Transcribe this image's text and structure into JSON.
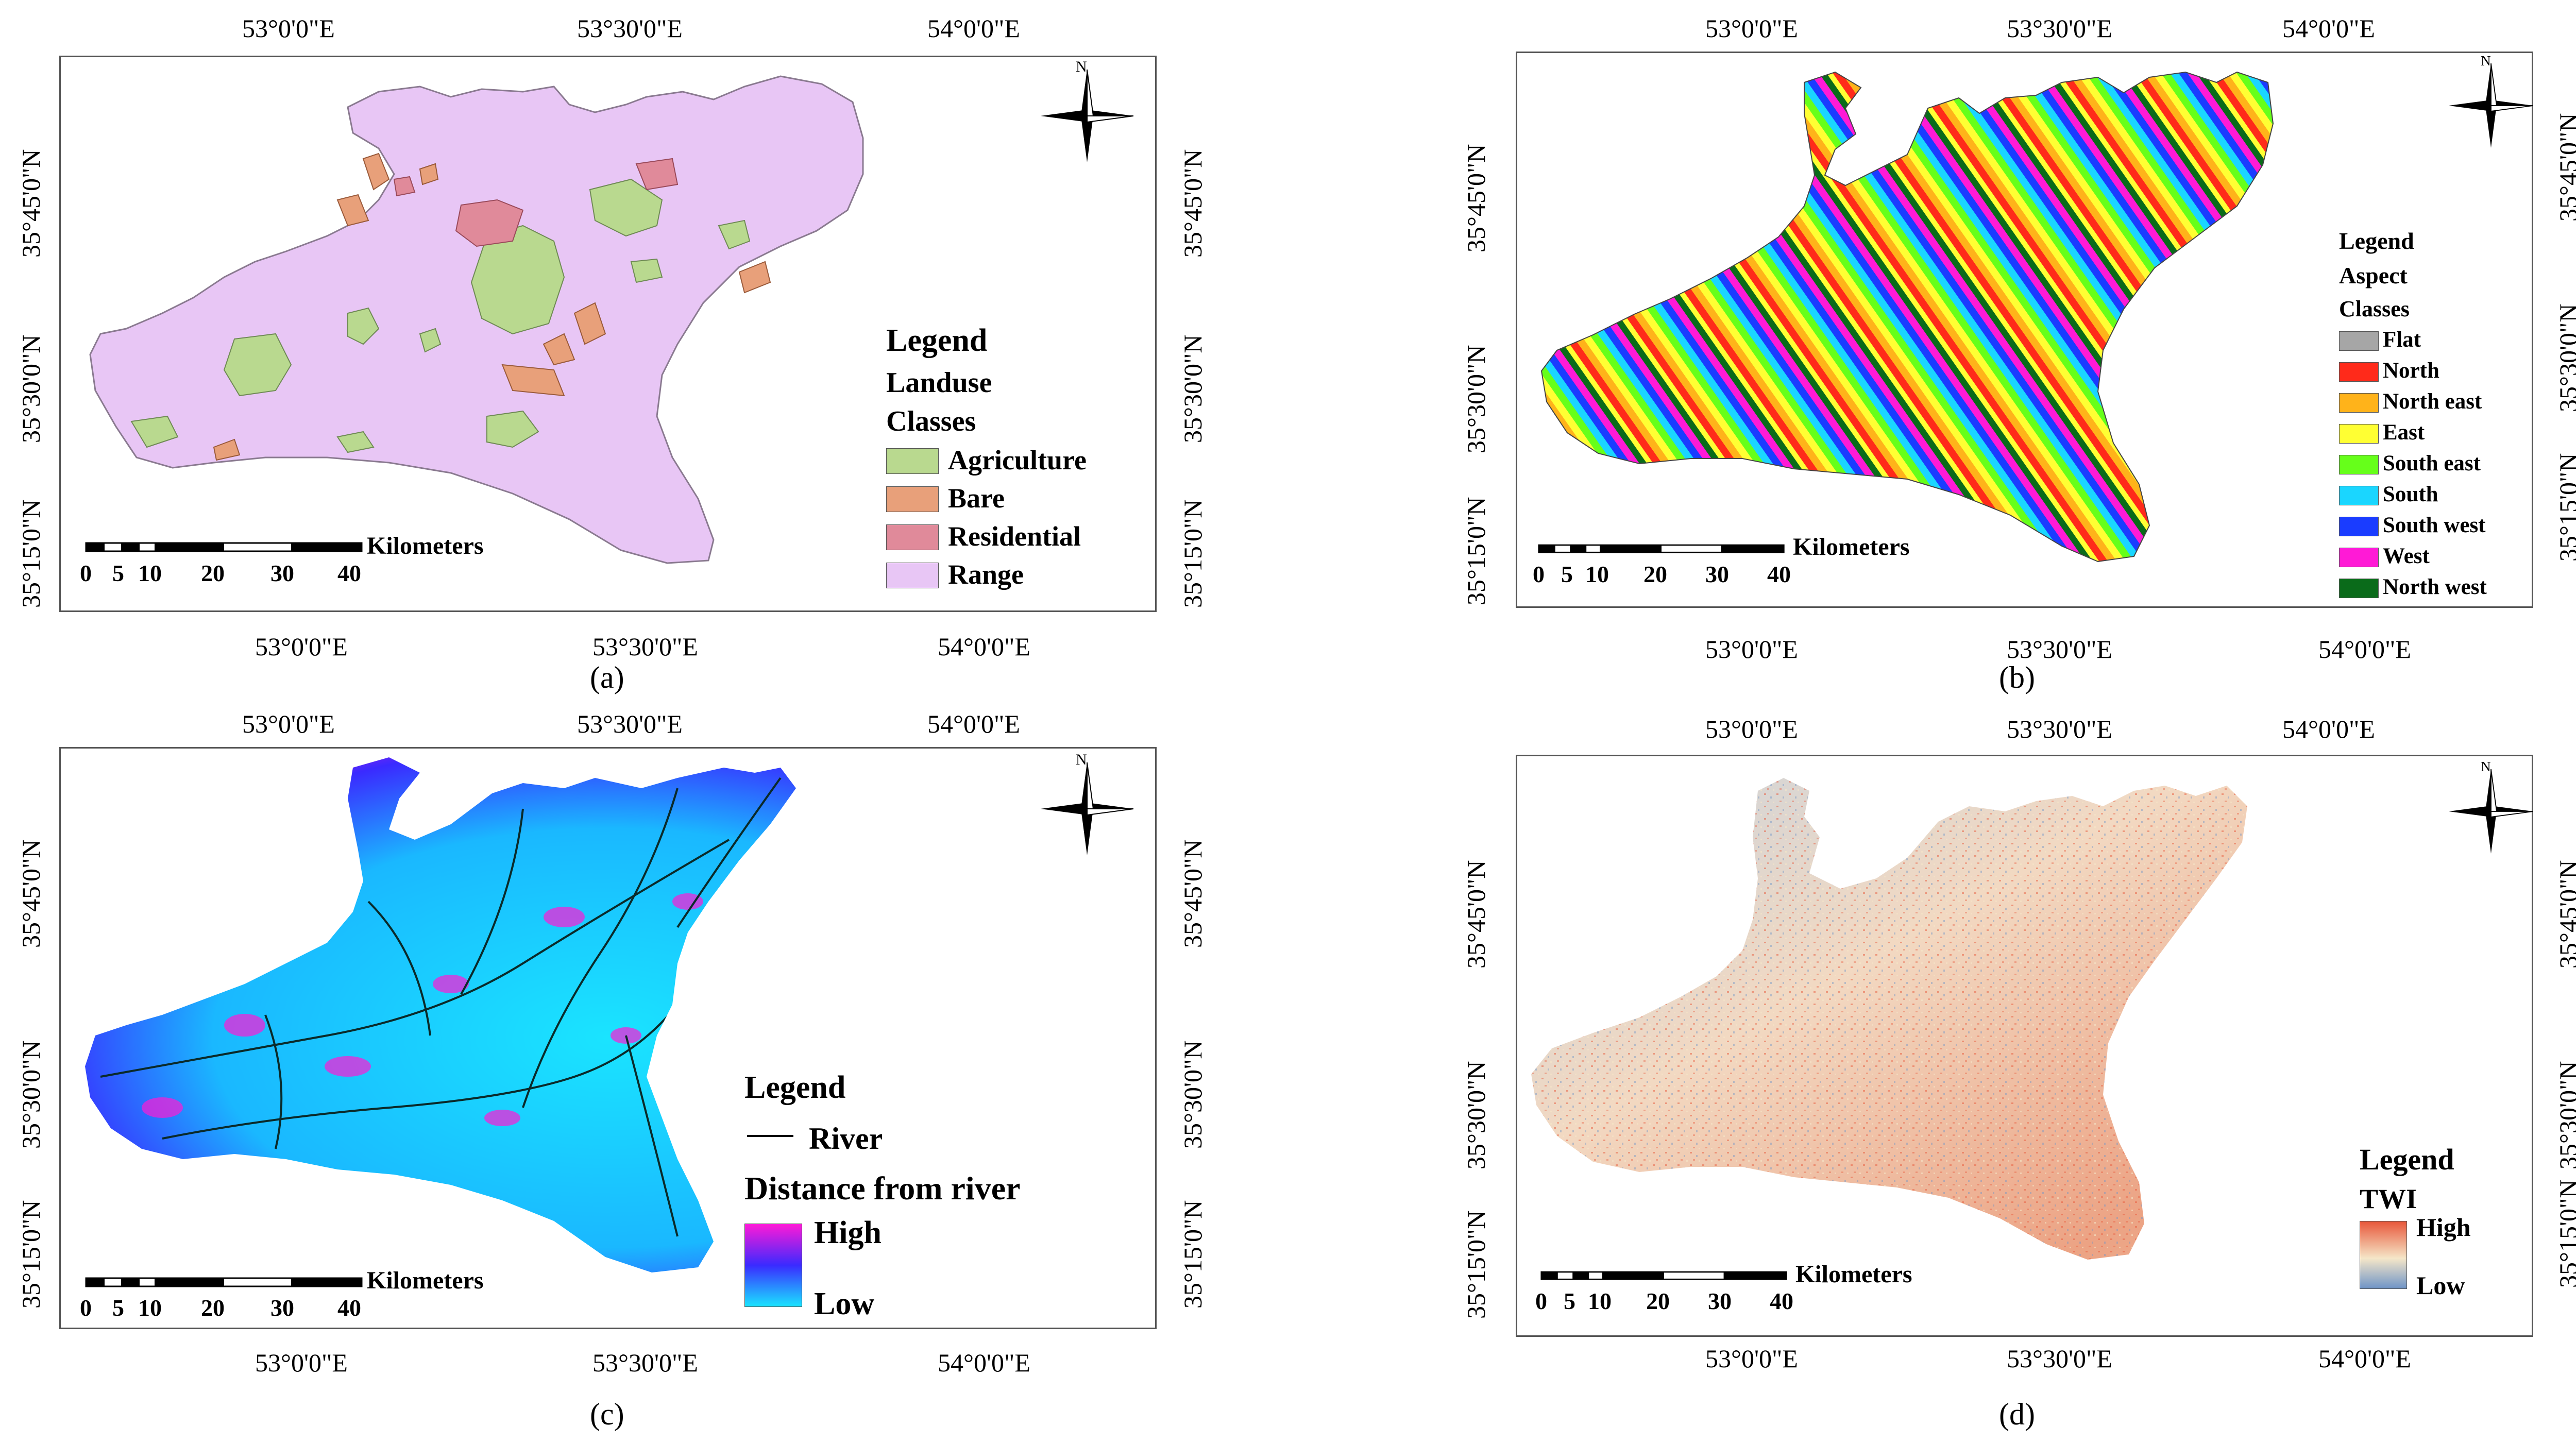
{
  "panels": {
    "a": {
      "caption": "(a)",
      "top_lons": [
        "53°0'0\"E",
        "53°30'0\"E",
        "54°0'0\"E"
      ],
      "bottom_lons": [
        "53°0'0\"E",
        "53°30'0\"E",
        "54°0'0\"E"
      ],
      "lats": [
        "35°45'0\"N",
        "35°30'0\"N",
        "35°15'0\"N"
      ],
      "legend": {
        "title": "Legend",
        "subtitle": "Landuse",
        "classes_label": "Classes",
        "items": [
          {
            "label": "Agriculture",
            "color": "#b9d98f"
          },
          {
            "label": "Bare",
            "color": "#e8a07a"
          },
          {
            "label": "Residential",
            "color": "#e08a9a"
          },
          {
            "label": "Range",
            "color": "#e8c6f5"
          }
        ]
      },
      "scale": {
        "unit": "Kilometers",
        "ticks": [
          "0",
          "5",
          "10",
          "20",
          "30",
          "40"
        ]
      },
      "north": "N"
    },
    "b": {
      "caption": "(b)",
      "top_lons": [
        "53°0'0\"E",
        "53°30'0\"E",
        "54°0'0\"E"
      ],
      "bottom_lons": [
        "53°0'0\"E",
        "53°30'0\"E",
        "54°0'0\"E"
      ],
      "lats": [
        "35°45'0\"N",
        "35°30'0\"N",
        "35°15'0\"N"
      ],
      "legend": {
        "title": "Legend",
        "subtitle": "Aspect",
        "classes_label": "Classes",
        "items": [
          {
            "label": "Flat",
            "color": "#a6a6a6"
          },
          {
            "label": "North",
            "color": "#ff2a1a"
          },
          {
            "label": "North east",
            "color": "#ffb31a"
          },
          {
            "label": "East",
            "color": "#ffff33"
          },
          {
            "label": "South east",
            "color": "#66ff1a"
          },
          {
            "label": "South",
            "color": "#1ad6ff"
          },
          {
            "label": "South west",
            "color": "#1a3cff"
          },
          {
            "label": "West",
            "color": "#ff1ad6"
          },
          {
            "label": "North west",
            "color": "#0a6b1a"
          }
        ]
      },
      "scale": {
        "unit": "Kilometers",
        "ticks": [
          "0",
          "5",
          "10",
          "20",
          "30",
          "40"
        ]
      },
      "north": "N"
    },
    "c": {
      "caption": "(c)",
      "top_lons": [
        "53°0'0\"E",
        "53°30'0\"E",
        "54°0'0\"E"
      ],
      "bottom_lons": [
        "53°0'0\"E",
        "53°30'0\"E",
        "54°0'0\"E"
      ],
      "lats": [
        "35°45'0\"N",
        "35°30'0\"N",
        "35°15'0\"N"
      ],
      "legend": {
        "title": "Legend",
        "river_label": "River",
        "ramp_title": "Distance from river",
        "high": "High",
        "low": "Low",
        "ramp_colors": [
          "#ff1ad6",
          "#3a2aff",
          "#1ae4ff"
        ]
      },
      "scale": {
        "unit": "Kilometers",
        "ticks": [
          "0",
          "5",
          "10",
          "20",
          "30",
          "40"
        ]
      },
      "north": "N"
    },
    "d": {
      "caption": "(d)",
      "top_lons": [
        "53°0'0\"E",
        "53°30'0\"E",
        "54°0'0\"E"
      ],
      "bottom_lons": [
        "53°0'0\"E",
        "53°30'0\"E",
        "54°0'0\"E"
      ],
      "lats": [
        "35°45'0\"N",
        "35°30'0\"N",
        "35°15'0\"N"
      ],
      "legend": {
        "title": "Legend",
        "ramp_title": "TWI",
        "high": "High",
        "low": "Low",
        "ramp_colors": [
          "#e8573a",
          "#f5e6c8",
          "#6f95c7"
        ]
      },
      "scale": {
        "unit": "Kilometers",
        "ticks": [
          "0",
          "5",
          "10",
          "20",
          "30",
          "40"
        ]
      },
      "north": "N"
    }
  }
}
